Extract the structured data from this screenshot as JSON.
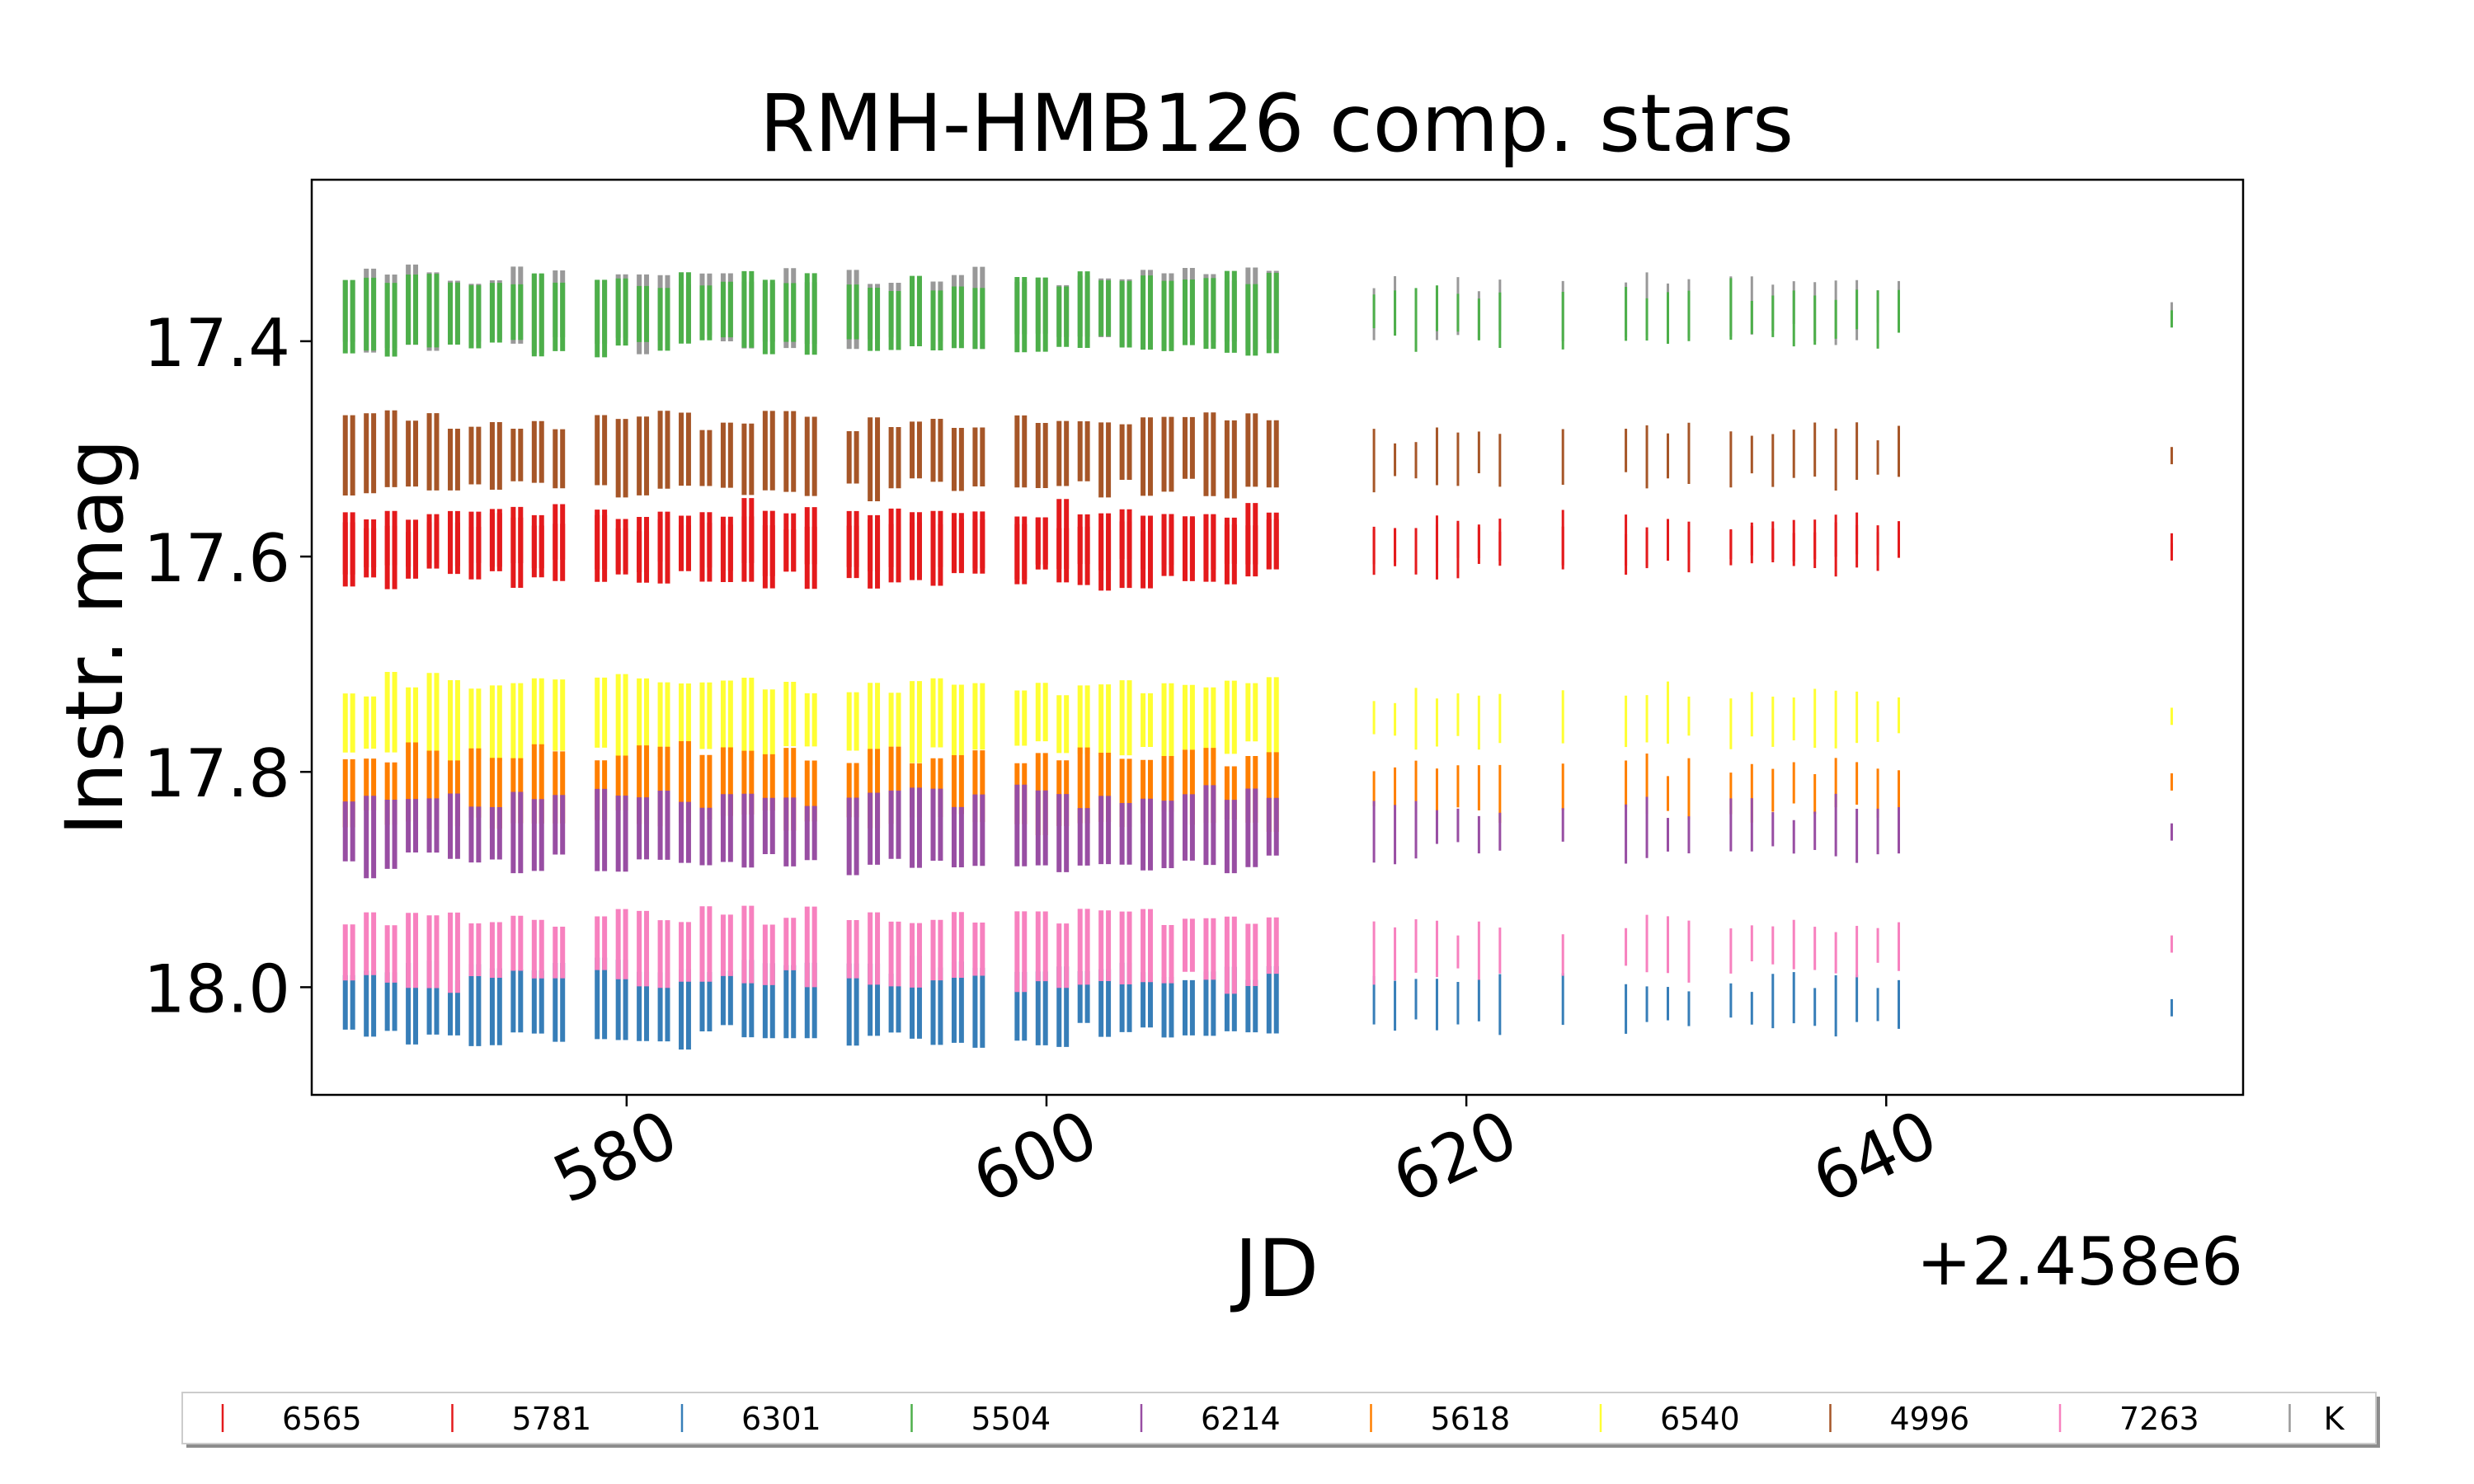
{
  "chart_data": {
    "type": "scatter",
    "title": "RMH-HMB126 comp. stars",
    "xlabel": "JD",
    "ylabel": "Instr. mag",
    "x_offset_label": "+2.458e6",
    "xlim": [
      565,
      657
    ],
    "ylim": [
      18.1,
      17.25
    ],
    "y_inverted": true,
    "xticks": [
      580,
      600,
      620,
      640
    ],
    "xtick_labels": [
      "580",
      "600",
      "620",
      "640"
    ],
    "yticks": [
      17.4,
      17.6,
      17.8,
      18.0
    ],
    "ytick_labels": [
      "17.4",
      "17.6",
      "17.8",
      "18.0"
    ],
    "grid": false,
    "legend_position": "bottom",
    "observation_nights": [
      566.6,
      567.6,
      568.6,
      569.6,
      570.6,
      571.6,
      572.6,
      573.6,
      574.6,
      575.6,
      576.6,
      578.6,
      579.6,
      580.6,
      581.6,
      582.6,
      583.6,
      584.6,
      585.6,
      586.6,
      587.6,
      588.6,
      590.6,
      591.6,
      592.6,
      593.6,
      594.6,
      595.6,
      596.6,
      598.6,
      599.6,
      600.6,
      601.6,
      602.6,
      603.6,
      604.6,
      605.6,
      606.6,
      607.6,
      608.6,
      609.6,
      610.6,
      615.6,
      616.6,
      617.6,
      618.6,
      619.6,
      620.6,
      621.6,
      624.6,
      627.6,
      628.6,
      629.6,
      630.6,
      632.6,
      633.6,
      634.6,
      635.6,
      636.6,
      637.6,
      638.6,
      639.6,
      640.6,
      653.6
    ],
    "series": [
      {
        "name": "6565",
        "color": "#e41a1c",
        "mag": 17.59,
        "spread": 0.03
      },
      {
        "name": "5781",
        "color": "#e41a1c",
        "mag": 17.59,
        "spread": 0.02
      },
      {
        "name": "6301",
        "color": "#377eb8",
        "mag": 18.015,
        "spread": 0.03
      },
      {
        "name": "5504",
        "color": "#4daf4a",
        "mag": 17.375,
        "spread": 0.03
      },
      {
        "name": "6214",
        "color": "#984ea3",
        "mag": 17.855,
        "spread": 0.03
      },
      {
        "name": "5618",
        "color": "#ff7f00",
        "mag": 17.815,
        "spread": 0.03
      },
      {
        "name": "6540",
        "color": "#ffff33",
        "mag": 17.75,
        "spread": 0.03
      },
      {
        "name": "4996",
        "color": "#a65628",
        "mag": 17.505,
        "spread": 0.03
      },
      {
        "name": "7263",
        "color": "#f781bf",
        "mag": 17.965,
        "spread": 0.03
      },
      {
        "name": "K",
        "color": "#999999",
        "mag": 17.37,
        "spread": 0.03
      }
    ]
  }
}
